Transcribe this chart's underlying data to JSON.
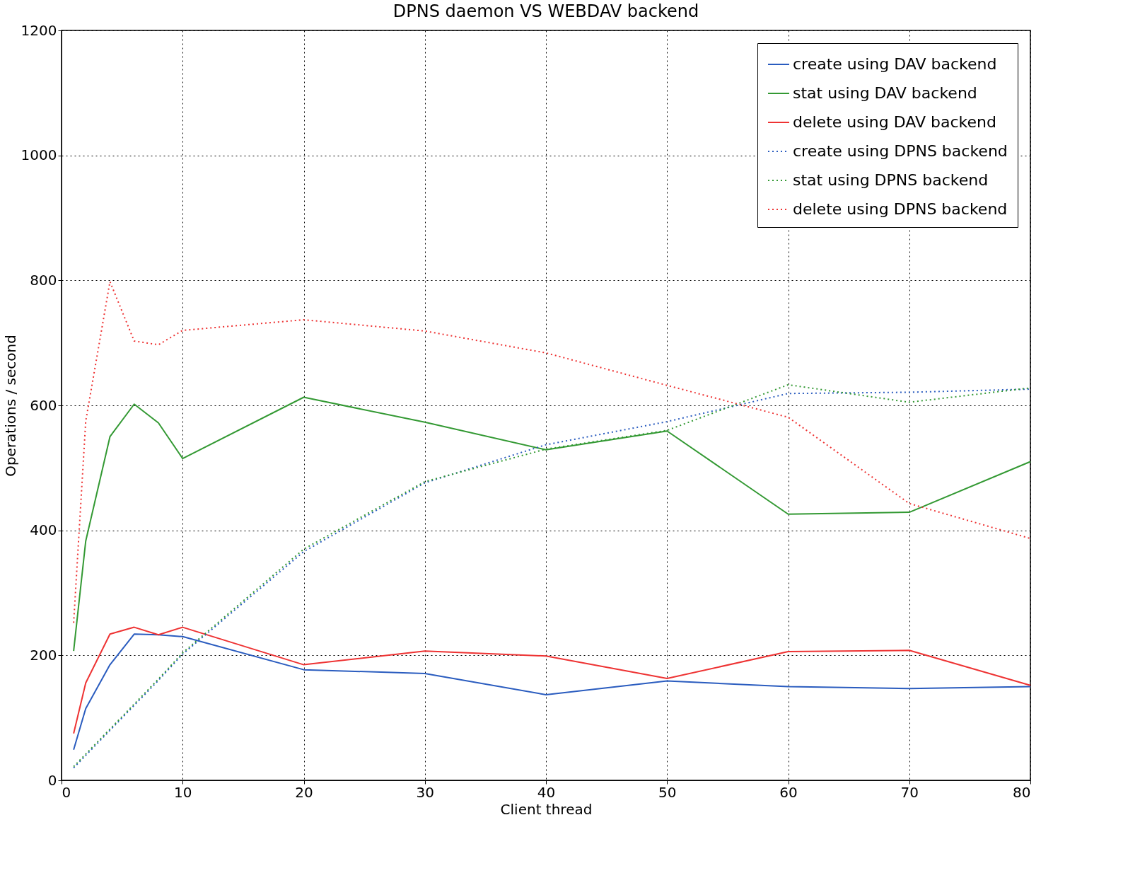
{
  "chart_data": {
    "type": "line",
    "title": "DPNS daemon VS WEBDAV backend",
    "xlabel": "Client thread",
    "ylabel": "Operations / second",
    "x": [
      1,
      2,
      4,
      6,
      8,
      10,
      20,
      30,
      40,
      50,
      60,
      70,
      80
    ],
    "xlim": [
      0,
      80
    ],
    "xticks": [
      0,
      10,
      20,
      30,
      40,
      50,
      60,
      70,
      80
    ],
    "ylim": [
      0,
      1200
    ],
    "yticks": [
      0,
      200,
      400,
      600,
      800,
      1000,
      1200
    ],
    "grid": true,
    "legend": "top right",
    "series": [
      {
        "name": "create using DAV backend",
        "color": "#2a5cbf",
        "line_style": "solid",
        "values": [
          49,
          115,
          185,
          234,
          233,
          230,
          177,
          171,
          137,
          159,
          150,
          147,
          150
        ]
      },
      {
        "name": "stat using DAV backend",
        "color": "#339933",
        "line_style": "solid",
        "values": [
          207,
          383,
          550,
          602,
          572,
          515,
          613,
          573,
          529,
          559,
          426,
          429,
          510
        ]
      },
      {
        "name": "delete using DAV backend",
        "color": "#ee3333",
        "line_style": "solid",
        "values": [
          75,
          156,
          234,
          245,
          233,
          245,
          185,
          207,
          199,
          163,
          206,
          208,
          152
        ]
      },
      {
        "name": "create using DPNS backend",
        "color": "#2a5cbf",
        "line_style": "dotted",
        "values": [
          20,
          40,
          80,
          120,
          160,
          202,
          366,
          476,
          537,
          574,
          619,
          621,
          626
        ]
      },
      {
        "name": "stat using DPNS backend",
        "color": "#339933",
        "line_style": "dotted",
        "values": [
          22,
          42,
          82,
          122,
          162,
          204,
          370,
          478,
          530,
          560,
          633,
          605,
          628
        ]
      },
      {
        "name": "delete using DPNS backend",
        "color": "#ee3333",
        "line_style": "dotted",
        "values": [
          252,
          575,
          798,
          703,
          697,
          720,
          737,
          719,
          684,
          632,
          581,
          443,
          387
        ]
      }
    ]
  }
}
